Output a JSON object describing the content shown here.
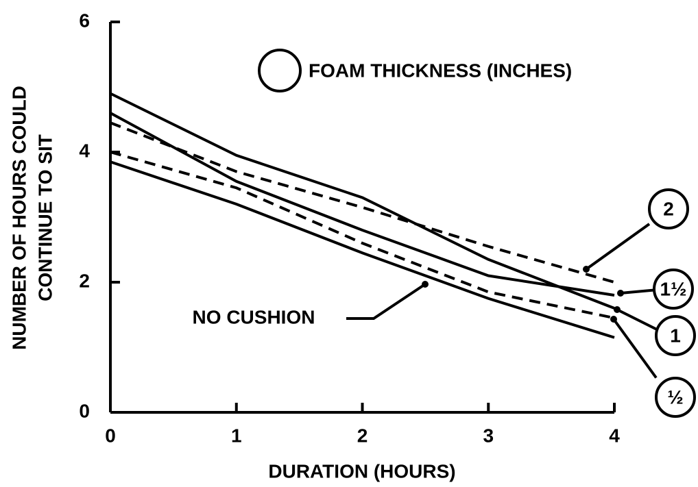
{
  "chart_data": {
    "type": "line",
    "annotation": "FOAM THICKNESS (INCHES)",
    "xlabel": "DURATION (HOURS)",
    "ylabel": [
      "NUMBER OF HOURS COULD",
      "CONTINUE TO SIT"
    ],
    "x": [
      0,
      1,
      2,
      3,
      4
    ],
    "series": [
      {
        "name": "1",
        "color": "#000000",
        "dashed": false,
        "values": [
          4.9,
          3.95,
          3.3,
          2.35,
          1.6
        ]
      },
      {
        "name": "1½",
        "color": "#000000",
        "dashed": false,
        "values": [
          4.6,
          3.55,
          2.8,
          2.1,
          1.8
        ]
      },
      {
        "name": "2",
        "color": "#000000",
        "dashed": true,
        "values": [
          4.45,
          3.7,
          3.15,
          2.55,
          2.0
        ]
      },
      {
        "name": "½",
        "color": "#000000",
        "dashed": true,
        "values": [
          4.0,
          3.45,
          2.6,
          1.85,
          1.45
        ]
      },
      {
        "name": "NO CUSHION",
        "color": "#000000",
        "dashed": false,
        "values": [
          3.85,
          3.2,
          2.45,
          1.75,
          1.15
        ]
      }
    ],
    "xlim": [
      0,
      4
    ],
    "ylim": [
      0,
      6
    ],
    "xticks": [
      0,
      1,
      2,
      3,
      4
    ],
    "yticks": [
      0,
      2,
      4,
      6
    ]
  }
}
